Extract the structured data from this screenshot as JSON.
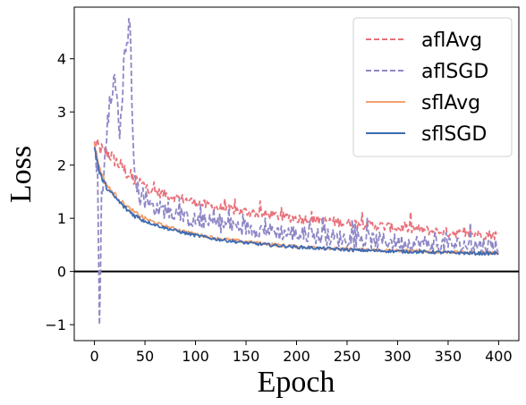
{
  "chart_data": {
    "type": "line",
    "xlabel": "Epoch",
    "ylabel": "Loss",
    "xlim": [
      -20,
      420
    ],
    "ylim": [
      -1.3,
      4.97
    ],
    "xticks": [
      0,
      50,
      100,
      150,
      200,
      250,
      300,
      350,
      400
    ],
    "yticks": [
      -1,
      0,
      1,
      2,
      3,
      4
    ],
    "xtick_labels": [
      "0",
      "50",
      "100",
      "150",
      "200",
      "250",
      "300",
      "350",
      "400"
    ],
    "ytick_labels": [
      "−1",
      "0",
      "1",
      "2",
      "3",
      "4"
    ],
    "reference_line": {
      "y": 0,
      "color": "#000000"
    },
    "legend_position": "top-right",
    "series": [
      {
        "name": "aflAvg",
        "style": "dashed",
        "color": "#e8717a",
        "x": [
          0,
          3,
          6,
          10,
          15,
          20,
          25,
          30,
          35,
          40,
          45,
          50,
          60,
          70,
          80,
          90,
          100,
          120,
          140,
          160,
          180,
          200,
          220,
          240,
          260,
          280,
          300,
          320,
          340,
          360,
          380,
          400
        ],
        "values": [
          2.4,
          2.35,
          2.3,
          2.25,
          2.2,
          2.1,
          2.0,
          1.9,
          1.8,
          1.7,
          1.65,
          1.6,
          1.5,
          1.45,
          1.4,
          1.35,
          1.3,
          1.2,
          1.15,
          1.1,
          1.05,
          1.0,
          0.97,
          0.93,
          0.9,
          0.86,
          0.82,
          0.79,
          0.75,
          0.72,
          0.7,
          0.68
        ]
      },
      {
        "name": "aflSGD",
        "style": "dashed",
        "color": "#8e87c6",
        "x": [
          0,
          3,
          5,
          7,
          10,
          15,
          20,
          25,
          30,
          35,
          38,
          42,
          45,
          50,
          60,
          70,
          80,
          90,
          100,
          120,
          140,
          160,
          180,
          200,
          220,
          240,
          260,
          280,
          300,
          320,
          340,
          360,
          380,
          400
        ],
        "values": [
          2.35,
          2.0,
          -1.0,
          1.5,
          2.1,
          3.3,
          3.7,
          2.5,
          4.2,
          4.7,
          2.6,
          1.5,
          1.4,
          1.3,
          1.2,
          1.15,
          1.1,
          1.0,
          0.95,
          0.9,
          0.85,
          0.8,
          0.75,
          0.7,
          0.67,
          0.63,
          0.6,
          0.58,
          0.55,
          0.53,
          0.51,
          0.5,
          0.49,
          0.48
        ]
      },
      {
        "name": "sflAvg",
        "style": "solid",
        "color": "#f4a06e",
        "x": [
          0,
          5,
          10,
          15,
          20,
          25,
          30,
          35,
          40,
          45,
          50,
          60,
          70,
          80,
          90,
          100,
          120,
          140,
          160,
          180,
          200,
          220,
          240,
          260,
          280,
          300,
          320,
          340,
          360,
          380,
          400
        ],
        "values": [
          2.4,
          1.95,
          1.7,
          1.55,
          1.45,
          1.35,
          1.25,
          1.17,
          1.1,
          1.05,
          1.0,
          0.92,
          0.85,
          0.8,
          0.75,
          0.7,
          0.63,
          0.58,
          0.54,
          0.5,
          0.47,
          0.45,
          0.43,
          0.41,
          0.4,
          0.39,
          0.38,
          0.37,
          0.36,
          0.35,
          0.35
        ]
      },
      {
        "name": "sflSGD",
        "style": "solid",
        "color": "#3d6bb3",
        "x": [
          0,
          5,
          10,
          15,
          20,
          25,
          30,
          35,
          40,
          45,
          50,
          60,
          70,
          80,
          90,
          100,
          120,
          140,
          160,
          180,
          200,
          220,
          240,
          260,
          280,
          300,
          320,
          340,
          360,
          380,
          400
        ],
        "values": [
          2.35,
          1.85,
          1.65,
          1.5,
          1.4,
          1.3,
          1.2,
          1.12,
          1.05,
          1.0,
          0.95,
          0.88,
          0.82,
          0.77,
          0.72,
          0.68,
          0.61,
          0.56,
          0.52,
          0.49,
          0.46,
          0.44,
          0.42,
          0.4,
          0.39,
          0.38,
          0.37,
          0.36,
          0.35,
          0.34,
          0.34
        ]
      }
    ]
  }
}
